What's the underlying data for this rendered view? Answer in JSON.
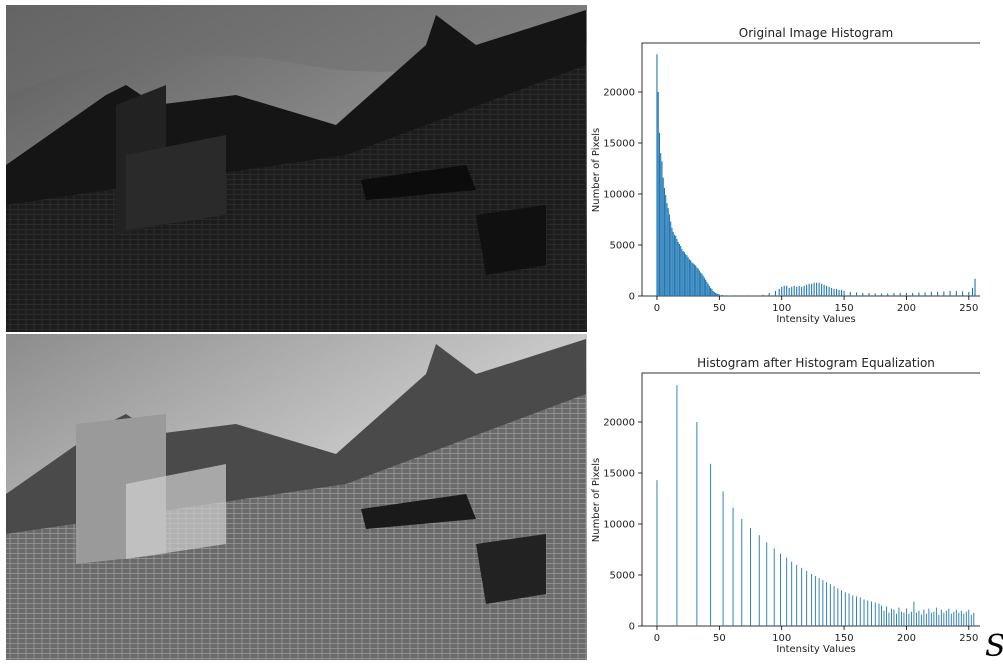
{
  "corner_glyph": "S",
  "images": [
    {
      "name": "original-photo"
    },
    {
      "name": "equalized-photo"
    }
  ],
  "colors": {
    "bar": "#1f77b4",
    "axis": "#000000"
  },
  "chart_data": [
    {
      "type": "bar",
      "title": "Original Image Histogram",
      "xlabel": "Intensity Values",
      "ylabel": "Number of Pixels",
      "xlim": [
        -12,
        267
      ],
      "ylim": [
        0,
        24800
      ],
      "xticks": [
        0,
        50,
        100,
        150,
        200,
        250
      ],
      "yticks": [
        0,
        5000,
        10000,
        15000,
        20000
      ],
      "x": [
        0,
        1,
        2,
        3,
        4,
        5,
        6,
        7,
        8,
        9,
        10,
        11,
        12,
        13,
        14,
        15,
        16,
        17,
        18,
        19,
        20,
        21,
        22,
        23,
        24,
        25,
        26,
        27,
        28,
        29,
        30,
        31,
        32,
        33,
        34,
        35,
        36,
        37,
        38,
        39,
        40,
        41,
        42,
        43,
        44,
        45,
        46,
        47,
        48,
        49,
        50,
        52,
        55,
        58,
        60,
        65,
        70,
        75,
        80,
        85,
        90,
        95,
        98,
        100,
        102,
        104,
        106,
        108,
        110,
        112,
        114,
        116,
        118,
        120,
        122,
        124,
        126,
        128,
        130,
        132,
        134,
        136,
        138,
        140,
        142,
        144,
        146,
        148,
        150,
        155,
        160,
        165,
        170,
        175,
        180,
        185,
        190,
        195,
        200,
        205,
        210,
        215,
        220,
        225,
        230,
        235,
        240,
        245,
        250,
        253,
        255
      ],
      "values": [
        23700,
        20000,
        16000,
        14000,
        13200,
        11600,
        10600,
        9900,
        9100,
        8600,
        8000,
        7300,
        6700,
        6300,
        6000,
        5900,
        5600,
        5300,
        5100,
        4900,
        4600,
        4400,
        4300,
        4100,
        4000,
        3800,
        3600,
        3500,
        3300,
        3200,
        3100,
        3000,
        2800,
        2700,
        2500,
        2300,
        2200,
        2000,
        1800,
        1600,
        1400,
        1200,
        1000,
        800,
        700,
        500,
        400,
        300,
        250,
        200,
        150,
        100,
        60,
        40,
        30,
        20,
        20,
        30,
        60,
        120,
        300,
        500,
        700,
        900,
        1000,
        1000,
        800,
        900,
        1000,
        900,
        1000,
        900,
        1000,
        1100,
        1200,
        1200,
        1300,
        1300,
        1300,
        1200,
        1100,
        1000,
        900,
        800,
        700,
        700,
        600,
        600,
        500,
        400,
        350,
        300,
        300,
        250,
        250,
        250,
        300,
        300,
        300,
        300,
        350,
        350,
        400,
        400,
        450,
        500,
        500,
        450,
        400,
        800,
        1700
      ]
    },
    {
      "type": "bar",
      "title": "Histogram after Histogram Equalization",
      "xlabel": "Intensity Values",
      "ylabel": "Number of Pixels",
      "xlim": [
        -12,
        267
      ],
      "ylim": [
        0,
        24800
      ],
      "xticks": [
        0,
        50,
        100,
        150,
        200,
        250
      ],
      "yticks": [
        0,
        5000,
        10000,
        15000,
        20000
      ],
      "x": [
        0,
        16,
        32,
        43,
        53,
        61,
        68,
        75,
        82,
        88,
        94,
        99,
        104,
        108,
        112,
        116,
        120,
        124,
        127,
        130,
        133,
        136,
        139,
        142,
        145,
        148,
        151,
        154,
        157,
        160,
        163,
        166,
        169,
        172,
        175,
        178,
        180,
        182,
        184,
        186,
        188,
        190,
        192,
        194,
        196,
        198,
        200,
        202,
        204,
        206,
        208,
        210,
        212,
        214,
        216,
        218,
        220,
        222,
        224,
        226,
        228,
        230,
        232,
        234,
        236,
        238,
        240,
        242,
        244,
        246,
        248,
        250,
        252,
        254
      ],
      "values": [
        14300,
        23600,
        20000,
        15900,
        13200,
        11600,
        10500,
        9600,
        8900,
        8200,
        7600,
        7100,
        6700,
        6300,
        6000,
        5700,
        5400,
        5100,
        4900,
        4700,
        4500,
        4300,
        4100,
        3900,
        3700,
        3500,
        3300,
        3200,
        3000,
        2900,
        2800,
        2600,
        2500,
        2400,
        2300,
        2200,
        2000,
        1500,
        1900,
        1300,
        1700,
        1600,
        1200,
        1800,
        1400,
        1300,
        1700,
        1200,
        1400,
        2400,
        1300,
        1500,
        1100,
        1600,
        1200,
        1700,
        1300,
        1400,
        1800,
        1100,
        1600,
        1300,
        1500,
        1700,
        1200,
        1400,
        1600,
        1300,
        1500,
        1200,
        1400,
        1600,
        1100,
        1300
      ]
    }
  ]
}
